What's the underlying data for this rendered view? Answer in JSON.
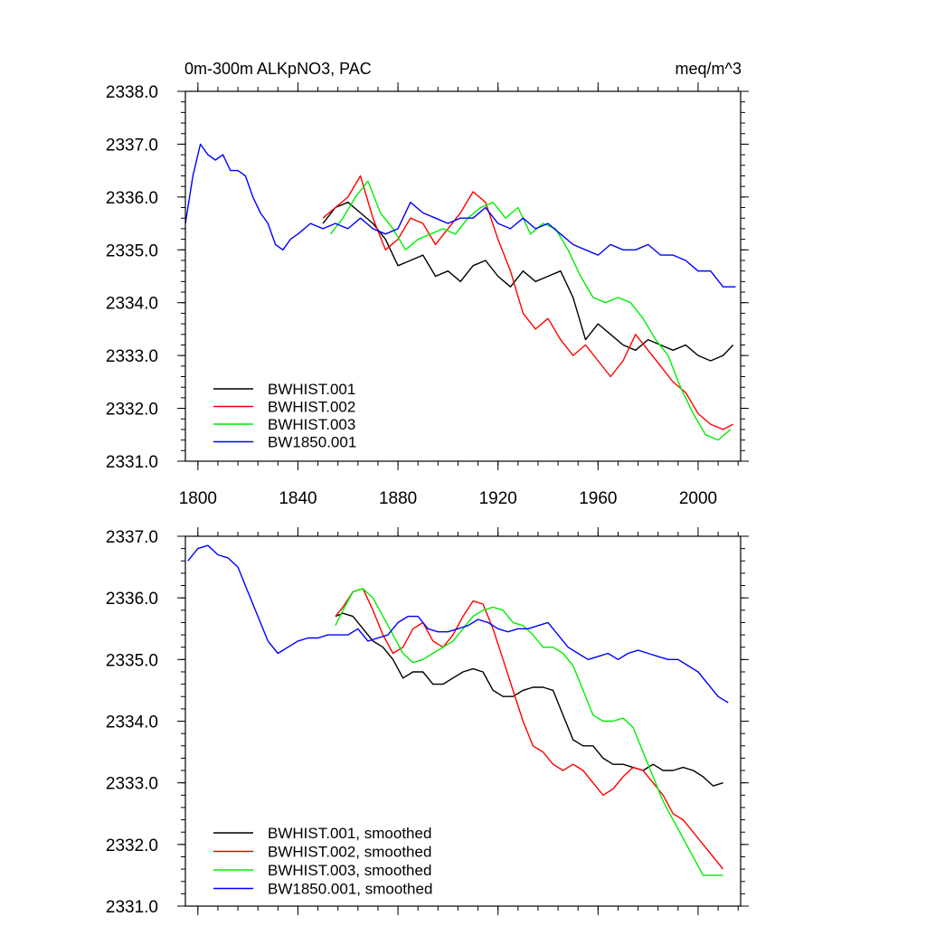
{
  "chart_data": [
    {
      "type": "line",
      "title_left": "0m-300m ALKpNO3, PAC",
      "title_right": "meq/m^3",
      "xlim": [
        1795,
        2017
      ],
      "ylim": [
        2331.0,
        2338.0
      ],
      "xticks": [
        1800,
        1840,
        1880,
        1920,
        1960,
        2000
      ],
      "yticks": [
        2331.0,
        2332.0,
        2333.0,
        2334.0,
        2335.0,
        2336.0,
        2337.0,
        2338.0
      ],
      "ytick_labels": [
        "2331.0",
        "2332.0",
        "2333.0",
        "2334.0",
        "2335.0",
        "2336.0",
        "2337.0",
        "2338.0"
      ],
      "xtick_labels": [
        "1800",
        "1840",
        "1880",
        "1920",
        "1960",
        "2000"
      ],
      "legend_position": "bottom-left",
      "series": [
        {
          "name": "BWHIST.001",
          "color": "#000000",
          "x": [
            1850,
            1855,
            1860,
            1865,
            1870,
            1875,
            1880,
            1885,
            1890,
            1895,
            1900,
            1905,
            1910,
            1915,
            1920,
            1925,
            1930,
            1935,
            1940,
            1945,
            1950,
            1955,
            1960,
            1965,
            1970,
            1975,
            1980,
            1985,
            1990,
            1995,
            2000,
            2005,
            2010,
            2014
          ],
          "y": [
            2335.5,
            2335.8,
            2335.9,
            2335.7,
            2335.5,
            2335.2,
            2334.7,
            2334.8,
            2334.9,
            2334.5,
            2334.6,
            2334.4,
            2334.7,
            2334.8,
            2334.5,
            2334.3,
            2334.6,
            2334.4,
            2334.5,
            2334.6,
            2334.1,
            2333.3,
            2333.6,
            2333.4,
            2333.2,
            2333.1,
            2333.3,
            2333.2,
            2333.1,
            2333.2,
            2333.0,
            2332.9,
            2333.0,
            2333.2
          ]
        },
        {
          "name": "BWHIST.002",
          "color": "#ff0000",
          "x": [
            1850,
            1855,
            1860,
            1865,
            1870,
            1875,
            1880,
            1885,
            1890,
            1895,
            1900,
            1905,
            1910,
            1915,
            1920,
            1925,
            1930,
            1935,
            1940,
            1945,
            1950,
            1955,
            1960,
            1965,
            1970,
            1975,
            1980,
            1985,
            1990,
            1995,
            2000,
            2005,
            2010,
            2014
          ],
          "y": [
            2335.6,
            2335.8,
            2336.0,
            2336.4,
            2335.6,
            2335.0,
            2335.2,
            2335.6,
            2335.5,
            2335.1,
            2335.4,
            2335.7,
            2336.1,
            2335.9,
            2335.2,
            2334.6,
            2333.8,
            2333.5,
            2333.7,
            2333.3,
            2333.0,
            2333.2,
            2332.9,
            2332.6,
            2332.9,
            2333.4,
            2333.1,
            2332.8,
            2332.5,
            2332.3,
            2331.9,
            2331.7,
            2331.6,
            2331.7
          ]
        },
        {
          "name": "BWHIST.003",
          "color": "#00ee00",
          "x": [
            1853,
            1858,
            1863,
            1868,
            1873,
            1878,
            1883,
            1888,
            1893,
            1898,
            1903,
            1908,
            1913,
            1918,
            1923,
            1928,
            1933,
            1938,
            1943,
            1948,
            1953,
            1958,
            1963,
            1968,
            1973,
            1978,
            1983,
            1988,
            1993,
            1998,
            2003,
            2008,
            2013
          ],
          "y": [
            2335.3,
            2335.6,
            2336.0,
            2336.3,
            2335.7,
            2335.4,
            2335.0,
            2335.2,
            2335.3,
            2335.4,
            2335.3,
            2335.6,
            2335.8,
            2335.9,
            2335.6,
            2335.8,
            2335.3,
            2335.5,
            2335.4,
            2335.0,
            2334.5,
            2334.1,
            2334.0,
            2334.1,
            2334.0,
            2333.7,
            2333.3,
            2333.0,
            2332.4,
            2331.9,
            2331.5,
            2331.4,
            2331.6
          ]
        },
        {
          "name": "BW1850.001",
          "color": "#0000ff",
          "x": [
            1795,
            1798,
            1801,
            1804,
            1807,
            1810,
            1813,
            1816,
            1819,
            1822,
            1825,
            1828,
            1831,
            1834,
            1837,
            1840,
            1845,
            1850,
            1855,
            1860,
            1865,
            1870,
            1875,
            1880,
            1885,
            1890,
            1895,
            1900,
            1905,
            1910,
            1915,
            1920,
            1925,
            1930,
            1935,
            1940,
            1945,
            1950,
            1955,
            1960,
            1965,
            1970,
            1975,
            1980,
            1985,
            1990,
            1995,
            2000,
            2005,
            2010,
            2015
          ],
          "y": [
            2335.5,
            2336.4,
            2337.0,
            2336.8,
            2336.7,
            2336.8,
            2336.5,
            2336.5,
            2336.4,
            2336.0,
            2335.7,
            2335.5,
            2335.1,
            2335.0,
            2335.2,
            2335.3,
            2335.5,
            2335.4,
            2335.5,
            2335.4,
            2335.6,
            2335.4,
            2335.3,
            2335.4,
            2335.9,
            2335.7,
            2335.6,
            2335.5,
            2335.6,
            2335.6,
            2335.8,
            2335.5,
            2335.4,
            2335.6,
            2335.4,
            2335.5,
            2335.3,
            2335.1,
            2335.0,
            2334.9,
            2335.1,
            2335.0,
            2335.0,
            2335.1,
            2334.9,
            2334.9,
            2334.8,
            2334.6,
            2334.6,
            2334.3,
            2334.3
          ]
        }
      ]
    },
    {
      "type": "line",
      "xlim": [
        1795,
        2017
      ],
      "ylim": [
        2331.0,
        2337.0
      ],
      "xticks": [
        1800,
        1840,
        1880,
        1920,
        1960,
        2000
      ],
      "yticks": [
        2331.0,
        2332.0,
        2333.0,
        2334.0,
        2335.0,
        2336.0,
        2337.0
      ],
      "ytick_labels": [
        "2331.0",
        "2332.0",
        "2333.0",
        "2334.0",
        "2335.0",
        "2336.0",
        "2337.0"
      ],
      "legend_position": "bottom-left",
      "series": [
        {
          "name": "BWHIST.001, smoothed",
          "color": "#000000",
          "x": [
            1855,
            1858,
            1862,
            1866,
            1870,
            1874,
            1878,
            1882,
            1886,
            1890,
            1894,
            1898,
            1902,
            1906,
            1910,
            1914,
            1918,
            1922,
            1926,
            1930,
            1934,
            1938,
            1942,
            1946,
            1950,
            1954,
            1958,
            1962,
            1966,
            1970,
            1974,
            1978,
            1982,
            1986,
            1990,
            1994,
            1998,
            2002,
            2006,
            2010
          ],
          "y": [
            2335.7,
            2335.75,
            2335.7,
            2335.5,
            2335.3,
            2335.2,
            2335.0,
            2334.7,
            2334.8,
            2334.8,
            2334.6,
            2334.6,
            2334.7,
            2334.8,
            2334.85,
            2334.8,
            2334.5,
            2334.4,
            2334.4,
            2334.5,
            2334.55,
            2334.55,
            2334.5,
            2334.1,
            2333.7,
            2333.6,
            2333.6,
            2333.4,
            2333.3,
            2333.3,
            2333.25,
            2333.2,
            2333.3,
            2333.2,
            2333.2,
            2333.25,
            2333.2,
            2333.1,
            2332.95,
            2333.0
          ]
        },
        {
          "name": "BWHIST.002, smoothed",
          "color": "#ff0000",
          "x": [
            1855,
            1858,
            1862,
            1866,
            1870,
            1874,
            1878,
            1882,
            1886,
            1890,
            1894,
            1898,
            1902,
            1906,
            1910,
            1914,
            1918,
            1922,
            1926,
            1930,
            1934,
            1938,
            1942,
            1946,
            1950,
            1954,
            1958,
            1962,
            1966,
            1970,
            1974,
            1978,
            1982,
            1986,
            1990,
            1994,
            1998,
            2002,
            2006,
            2010
          ],
          "y": [
            2335.7,
            2335.85,
            2336.1,
            2336.15,
            2335.8,
            2335.4,
            2335.1,
            2335.2,
            2335.5,
            2335.6,
            2335.3,
            2335.2,
            2335.4,
            2335.7,
            2335.95,
            2335.9,
            2335.5,
            2335.0,
            2334.5,
            2334.0,
            2333.6,
            2333.5,
            2333.3,
            2333.2,
            2333.3,
            2333.2,
            2333.0,
            2332.8,
            2332.9,
            2333.1,
            2333.25,
            2333.2,
            2333.0,
            2332.8,
            2332.5,
            2332.4,
            2332.2,
            2332.0,
            2331.8,
            2331.6
          ]
        },
        {
          "name": "BWHIST.003, smoothed",
          "color": "#00ee00",
          "x": [
            1855,
            1858,
            1862,
            1866,
            1870,
            1874,
            1878,
            1882,
            1886,
            1890,
            1894,
            1898,
            1902,
            1906,
            1910,
            1914,
            1918,
            1922,
            1926,
            1930,
            1934,
            1938,
            1942,
            1946,
            1950,
            1954,
            1958,
            1962,
            1966,
            1970,
            1974,
            1978,
            1982,
            1986,
            1990,
            1994,
            1998,
            2002,
            2006,
            2010
          ],
          "y": [
            2335.55,
            2335.8,
            2336.1,
            2336.15,
            2336.0,
            2335.7,
            2335.4,
            2335.1,
            2334.95,
            2335.0,
            2335.1,
            2335.2,
            2335.3,
            2335.5,
            2335.7,
            2335.8,
            2335.85,
            2335.8,
            2335.6,
            2335.55,
            2335.4,
            2335.2,
            2335.2,
            2335.1,
            2334.9,
            2334.5,
            2334.1,
            2334.0,
            2334.0,
            2334.05,
            2333.9,
            2333.5,
            2333.1,
            2332.7,
            2332.4,
            2332.1,
            2331.8,
            2331.5,
            2331.5,
            2331.5
          ]
        },
        {
          "name": "BW1850.001, smoothed",
          "color": "#0000ff",
          "x": [
            1796,
            1800,
            1804,
            1808,
            1812,
            1816,
            1820,
            1824,
            1828,
            1832,
            1836,
            1840,
            1844,
            1848,
            1852,
            1856,
            1860,
            1864,
            1868,
            1872,
            1876,
            1880,
            1884,
            1888,
            1892,
            1896,
            1900,
            1904,
            1908,
            1912,
            1916,
            1920,
            1924,
            1928,
            1932,
            1936,
            1940,
            1944,
            1948,
            1952,
            1956,
            1960,
            1964,
            1968,
            1972,
            1976,
            1980,
            1984,
            1988,
            1992,
            1996,
            2000,
            2004,
            2008,
            2012
          ],
          "y": [
            2336.6,
            2336.8,
            2336.85,
            2336.7,
            2336.65,
            2336.5,
            2336.1,
            2335.7,
            2335.3,
            2335.1,
            2335.2,
            2335.3,
            2335.35,
            2335.35,
            2335.4,
            2335.4,
            2335.4,
            2335.5,
            2335.3,
            2335.35,
            2335.4,
            2335.6,
            2335.7,
            2335.7,
            2335.5,
            2335.45,
            2335.45,
            2335.5,
            2335.55,
            2335.65,
            2335.6,
            2335.5,
            2335.45,
            2335.5,
            2335.5,
            2335.55,
            2335.6,
            2335.4,
            2335.2,
            2335.1,
            2335.0,
            2335.05,
            2335.1,
            2335.0,
            2335.1,
            2335.15,
            2335.1,
            2335.05,
            2335.0,
            2335.0,
            2334.9,
            2334.8,
            2334.6,
            2334.4,
            2334.3
          ]
        }
      ]
    }
  ]
}
